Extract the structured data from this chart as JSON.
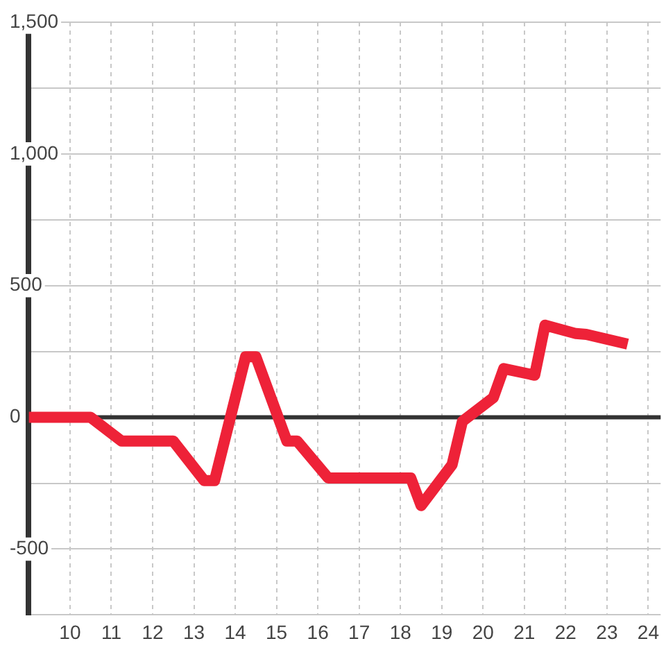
{
  "chart_data": {
    "type": "line",
    "x": [
      9,
      10.5,
      11.25,
      12.5,
      13.25,
      13.5,
      14.25,
      14.5,
      15.25,
      15.5,
      16.25,
      18.25,
      18.5,
      19.25,
      19.5,
      20.25,
      20.5,
      21.25,
      21.5,
      22.25,
      22.5,
      23.5
    ],
    "series": [
      {
        "color": "#ee2238",
        "values": [
          0,
          0,
          -90,
          -90,
          -240,
          -240,
          230,
          230,
          -90,
          -90,
          -230,
          -230,
          -335,
          -180,
          -15,
          75,
          185,
          160,
          350,
          318,
          315,
          278
        ]
      }
    ],
    "xlim": [
      9,
      24.3
    ],
    "xticks": [
      10,
      11,
      12,
      13,
      14,
      15,
      16,
      17,
      18,
      19,
      20,
      21,
      22,
      23,
      24
    ],
    "ylim": [
      -750,
      1500
    ],
    "yticks": [
      {
        "value": -750,
        "label": null
      },
      -500,
      {
        "value": -250,
        "label": null
      },
      0,
      {
        "value": 250,
        "label": null
      },
      500,
      {
        "value": 750,
        "label": null
      },
      {
        "value": 1000,
        "label": "1,000"
      },
      {
        "value": 1250,
        "label": null
      },
      {
        "value": 1500,
        "label": "1,500"
      }
    ],
    "ref_lines": [
      {
        "axis": "y",
        "value": 0,
        "color": "#333333"
      }
    ],
    "grid": true,
    "marker": "none",
    "line_style": "solid"
  }
}
